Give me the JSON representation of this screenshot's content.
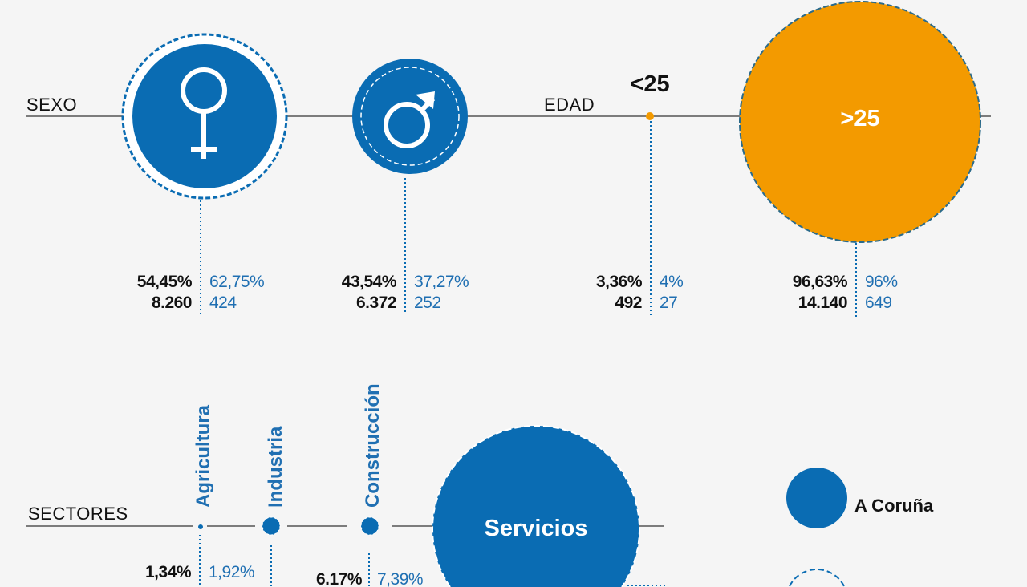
{
  "colors": {
    "blue": "#0a6cb3",
    "orange": "#f39a00",
    "background": "#f5f5f5",
    "text": "#111111",
    "accent_text": "#1f6fb2"
  },
  "sexo": {
    "label": "SEXO",
    "mujer": {
      "icon": "female-symbol-icon",
      "pct_black": "54,45%",
      "count_black": "8.260",
      "pct_blue": "62,75%",
      "count_blue": "424"
    },
    "hombre": {
      "icon": "male-symbol-icon",
      "pct_black": "43,54%",
      "count_black": "6.372",
      "pct_blue": "37,27%",
      "count_blue": "252"
    }
  },
  "edad": {
    "label": "EDAD",
    "menor": {
      "label": "<25",
      "pct_black": "3,36%",
      "count_black": "492",
      "pct_blue": "4%",
      "count_blue": "27"
    },
    "mayor": {
      "label": ">25",
      "pct_black": "96,63%",
      "count_black": "14.140",
      "pct_blue": "96%",
      "count_blue": "649"
    }
  },
  "sectores": {
    "label": "SECTORES",
    "agricultura": {
      "label": "Agricultura",
      "pct_black": "1,34%",
      "pct_blue": "1,92%"
    },
    "industria": {
      "label": "Industria"
    },
    "construccion": {
      "label": "Construcción",
      "pct_black": "6.17%",
      "pct_blue": "7,39%"
    },
    "servicios": {
      "label": "Servicios"
    }
  },
  "legend": {
    "filled": "A Coruña"
  }
}
